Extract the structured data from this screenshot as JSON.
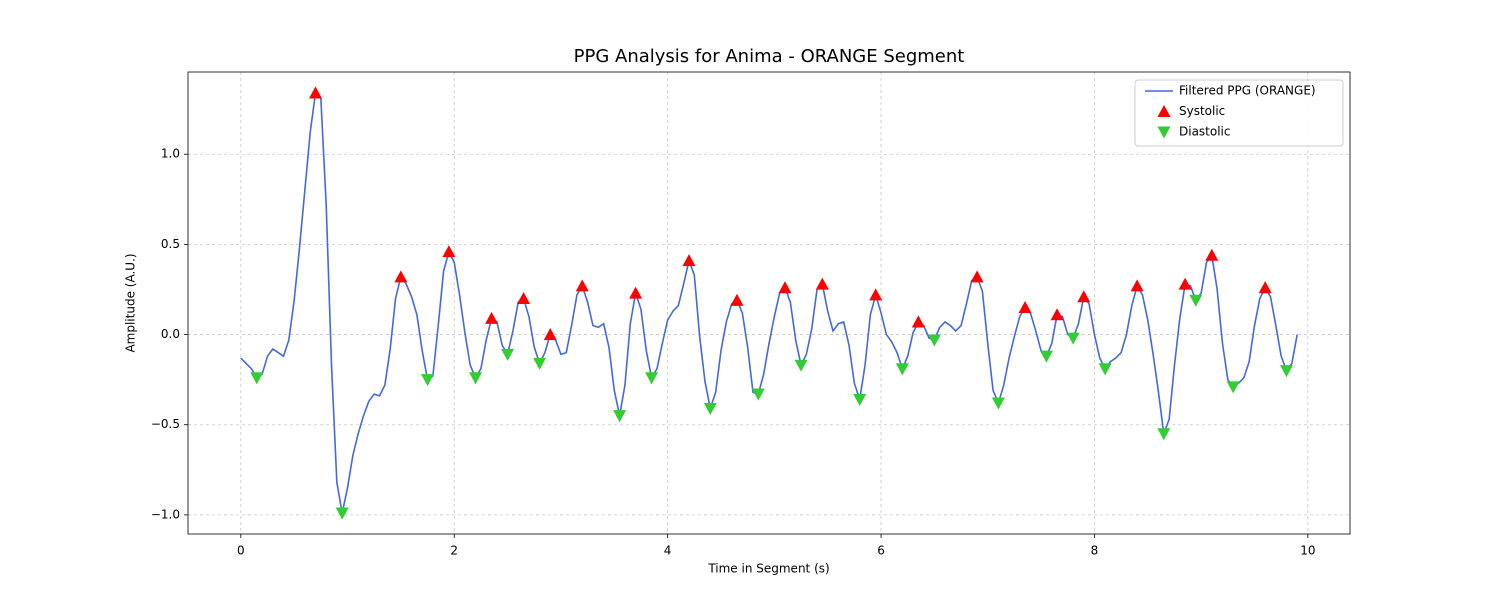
{
  "chart_data": {
    "type": "line",
    "title": "PPG Analysis for Anima - ORANGE Segment",
    "xlabel": "Time in Segment (s)",
    "ylabel": "Amplitude (A.U.)",
    "x": [
      0,
      0.05,
      0.1,
      0.15,
      0.2,
      0.25,
      0.3,
      0.35,
      0.4,
      0.45,
      0.5,
      0.55,
      0.6,
      0.65,
      0.7,
      0.75,
      0.8,
      0.85,
      0.9,
      0.95,
      1,
      1.05,
      1.1,
      1.15,
      1.2,
      1.25,
      1.3,
      1.35,
      1.4,
      1.45,
      1.5,
      1.55,
      1.6,
      1.65,
      1.7,
      1.75,
      1.8,
      1.85,
      1.9,
      1.95,
      2,
      2.05,
      2.1,
      2.15,
      2.2,
      2.25,
      2.3,
      2.35,
      2.4,
      2.45,
      2.5,
      2.55,
      2.6,
      2.65,
      2.7,
      2.75,
      2.8,
      2.85,
      2.9,
      2.95,
      3,
      3.05,
      3.1,
      3.15,
      3.2,
      3.25,
      3.3,
      3.35,
      3.4,
      3.45,
      3.5,
      3.55,
      3.6,
      3.65,
      3.7,
      3.75,
      3.8,
      3.85,
      3.9,
      3.95,
      4,
      4.05,
      4.1,
      4.15,
      4.2,
      4.25,
      4.3,
      4.35,
      4.4,
      4.45,
      4.5,
      4.55,
      4.6,
      4.65,
      4.7,
      4.75,
      4.8,
      4.85,
      4.9,
      4.95,
      5,
      5.05,
      5.1,
      5.15,
      5.2,
      5.25,
      5.3,
      5.35,
      5.4,
      5.45,
      5.5,
      5.55,
      5.6,
      5.65,
      5.7,
      5.75,
      5.8,
      5.85,
      5.9,
      5.95,
      6,
      6.05,
      6.1,
      6.15,
      6.2,
      6.25,
      6.3,
      6.35,
      6.4,
      6.45,
      6.5,
      6.55,
      6.6,
      6.65,
      6.7,
      6.75,
      6.8,
      6.85,
      6.9,
      6.95,
      7,
      7.05,
      7.1,
      7.15,
      7.2,
      7.25,
      7.3,
      7.35,
      7.4,
      7.45,
      7.5,
      7.55,
      7.6,
      7.65,
      7.7,
      7.75,
      7.8,
      7.85,
      7.9,
      7.95,
      8,
      8.05,
      8.1,
      8.15,
      8.2,
      8.25,
      8.3,
      8.35,
      8.4,
      8.45,
      8.5,
      8.55,
      8.6,
      8.65,
      8.7,
      8.75,
      8.8,
      8.85,
      8.9,
      8.95,
      9,
      9.05,
      9.1,
      9.15,
      9.2,
      9.25,
      9.3,
      9.35,
      9.4,
      9.45,
      9.5,
      9.55,
      9.6,
      9.65,
      9.7,
      9.75,
      9.8,
      9.85,
      9.9
    ],
    "series": [
      {
        "name": "Filtered PPG (ORANGE)",
        "color": "#4169e1",
        "marker": "line",
        "values": [
          -0.13,
          -0.16,
          -0.19,
          -0.24,
          -0.22,
          -0.12,
          -0.08,
          -0.1,
          -0.12,
          -0.03,
          0.19,
          0.48,
          0.8,
          1.12,
          1.34,
          1.31,
          0.72,
          -0.17,
          -0.82,
          -0.99,
          -0.85,
          -0.67,
          -0.55,
          -0.45,
          -0.37,
          -0.33,
          -0.34,
          -0.28,
          -0.08,
          0.2,
          0.32,
          0.28,
          0.21,
          0.11,
          -0.09,
          -0.25,
          -0.23,
          0.05,
          0.35,
          0.46,
          0.4,
          0.22,
          0.01,
          -0.17,
          -0.24,
          -0.19,
          -0.03,
          0.09,
          0.07,
          -0.06,
          -0.11,
          0.02,
          0.18,
          0.2,
          0.1,
          -0.07,
          -0.16,
          -0.1,
          0.0,
          -0.03,
          -0.11,
          -0.1,
          0.05,
          0.22,
          0.27,
          0.18,
          0.05,
          0.04,
          0.06,
          -0.07,
          -0.31,
          -0.45,
          -0.28,
          0.06,
          0.23,
          0.14,
          -0.09,
          -0.24,
          -0.19,
          -0.05,
          0.08,
          0.13,
          0.16,
          0.28,
          0.41,
          0.33,
          -0.01,
          -0.26,
          -0.41,
          -0.32,
          -0.09,
          0.07,
          0.17,
          0.19,
          0.12,
          -0.07,
          -0.32,
          -0.33,
          -0.22,
          -0.05,
          0.1,
          0.23,
          0.26,
          0.18,
          -0.03,
          -0.17,
          -0.11,
          0.03,
          0.25,
          0.28,
          0.13,
          0.02,
          0.06,
          0.07,
          -0.06,
          -0.27,
          -0.36,
          -0.17,
          0.11,
          0.22,
          0.12,
          0.0,
          -0.04,
          -0.1,
          -0.19,
          -0.12,
          0.01,
          0.07,
          0.05,
          -0.02,
          -0.03,
          0.04,
          0.07,
          0.05,
          0.02,
          0.05,
          0.17,
          0.3,
          0.32,
          0.24,
          -0.05,
          -0.31,
          -0.38,
          -0.28,
          -0.13,
          -0.01,
          0.1,
          0.15,
          0.12,
          0.02,
          -0.09,
          -0.12,
          -0.05,
          0.11,
          0.1,
          0.0,
          -0.02,
          0.06,
          0.21,
          0.17,
          0.0,
          -0.13,
          -0.19,
          -0.15,
          -0.13,
          -0.1,
          0.0,
          0.16,
          0.27,
          0.22,
          0.08,
          -0.11,
          -0.32,
          -0.55,
          -0.47,
          -0.17,
          0.09,
          0.28,
          0.27,
          0.19,
          0.23,
          0.4,
          0.44,
          0.25,
          -0.05,
          -0.25,
          -0.29,
          -0.27,
          -0.24,
          -0.15,
          0.05,
          0.2,
          0.26,
          0.21,
          0.05,
          -0.12,
          -0.2,
          -0.16,
          0.0
        ]
      },
      {
        "name": "Systolic",
        "color": "#ff0000",
        "marker": "triangle-up",
        "x": [
          0.7,
          1.5,
          1.95,
          2.35,
          2.65,
          2.9,
          3.2,
          3.7,
          4.2,
          4.65,
          5.1,
          5.45,
          5.95,
          6.35,
          6.9,
          7.35,
          7.65,
          7.9,
          8.4,
          8.85,
          9.1,
          9.6
        ],
        "values": [
          1.34,
          0.32,
          0.46,
          0.09,
          0.2,
          0.0,
          0.27,
          0.23,
          0.41,
          0.19,
          0.26,
          0.28,
          0.22,
          0.07,
          0.32,
          0.15,
          0.11,
          0.21,
          0.27,
          0.28,
          0.44,
          0.26
        ]
      },
      {
        "name": "Diastolic",
        "color": "#32cd32",
        "marker": "triangle-down",
        "x": [
          0.15,
          0.95,
          1.75,
          2.2,
          2.5,
          2.8,
          3.55,
          3.85,
          4.4,
          4.85,
          5.25,
          5.8,
          6.2,
          6.5,
          7.1,
          7.55,
          7.8,
          8.1,
          8.65,
          8.95,
          9.3,
          9.8
        ],
        "values": [
          -0.24,
          -0.99,
          -0.25,
          -0.24,
          -0.11,
          -0.16,
          -0.45,
          -0.24,
          -0.41,
          -0.33,
          -0.17,
          -0.36,
          -0.19,
          -0.03,
          -0.38,
          -0.12,
          -0.02,
          -0.19,
          -0.55,
          0.19,
          -0.29,
          -0.2
        ]
      }
    ],
    "xlim": [
      -0.495,
      10.395
    ],
    "ylim": [
      -1.106,
      1.456
    ],
    "xticks": [
      0,
      2,
      4,
      6,
      8,
      10
    ],
    "yticks": [
      {
        "value": -1.0,
        "label": "−1.0"
      },
      {
        "value": -0.5,
        "label": "−0.5"
      },
      {
        "value": 0.0,
        "label": "0.0"
      },
      {
        "value": 0.5,
        "label": "0.5"
      },
      {
        "value": 1.0,
        "label": "1.0"
      }
    ],
    "grid": true,
    "legend": "upper right"
  }
}
